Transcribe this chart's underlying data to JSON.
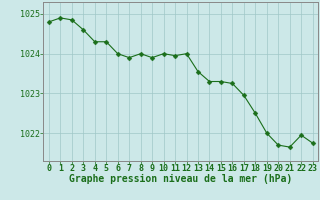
{
  "x": [
    0,
    1,
    2,
    3,
    4,
    5,
    6,
    7,
    8,
    9,
    10,
    11,
    12,
    13,
    14,
    15,
    16,
    17,
    18,
    19,
    20,
    21,
    22,
    23
  ],
  "y": [
    1024.8,
    1024.9,
    1024.85,
    1024.6,
    1024.3,
    1024.3,
    1024.0,
    1023.9,
    1024.0,
    1023.9,
    1024.0,
    1023.95,
    1024.0,
    1023.55,
    1023.3,
    1023.3,
    1023.25,
    1022.95,
    1022.5,
    1022.0,
    1021.7,
    1021.65,
    1021.95,
    1021.75
  ],
  "line_color": "#1a6e1a",
  "marker_color": "#1a6e1a",
  "bg_color": "#cce8e8",
  "grid_color": "#a0c8c8",
  "ylabel_ticks": [
    1022,
    1023,
    1024,
    1025
  ],
  "xlabel": "Graphe pression niveau de la mer (hPa)",
  "ylim_min": 1021.3,
  "ylim_max": 1025.3,
  "xlim_min": -0.5,
  "xlim_max": 23.5,
  "xlabel_fontsize": 7,
  "tick_fontsize": 6,
  "line_width": 0.8,
  "marker_size": 2.5
}
